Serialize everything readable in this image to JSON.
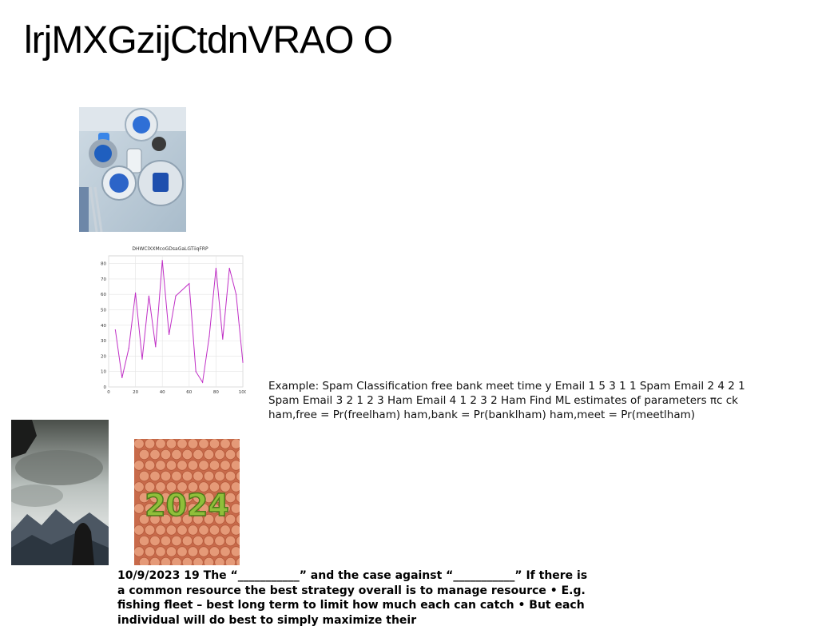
{
  "page": {
    "title": "lrjMXGzijCtdnVRAO O",
    "paragraph": "Example: Spam Classification free bank meet time y Email 1 5 3 1 1 Spam Email 2 4 2 1 Spam Email 3 2 1 2 3 Ham Email 4 1 2 3 2 Ham Find ML estimates of parameters πc ck ham,free = Pr(freelham) ham,bank = Pr(banklham) ham,meet = Pr(meetlham)",
    "bold_paragraph": "10/9/2023 19 The “___________” and the case against “___________” If there is a common resource the best strategy overall is to manage resource • E.g. fishing fleet – best long term to limit how much each can catch • But each individual will do best to simply maximize their"
  },
  "chart_data": {
    "type": "line",
    "title": "DHWClXXMcoGDsaGaLGTiiqFRP",
    "xlabel": "",
    "ylabel": "",
    "xlim": [
      0,
      100
    ],
    "ylim": [
      0,
      85
    ],
    "xticks": [
      0,
      20,
      40,
      60,
      80,
      100
    ],
    "yticks": [
      0,
      10,
      20,
      30,
      40,
      50,
      60,
      70,
      80
    ],
    "grid": true,
    "series_color": "#c02fc6",
    "series": [
      {
        "x": [
          5,
          10,
          15,
          20,
          25,
          30,
          35,
          40,
          45,
          50,
          60,
          65,
          70,
          75,
          80,
          85,
          90,
          95,
          100
        ],
        "values": [
          37,
          6,
          25,
          61,
          18,
          59,
          26,
          82,
          34,
          59,
          67,
          10,
          3,
          33,
          77,
          31,
          77,
          60,
          16
        ]
      }
    ]
  }
}
